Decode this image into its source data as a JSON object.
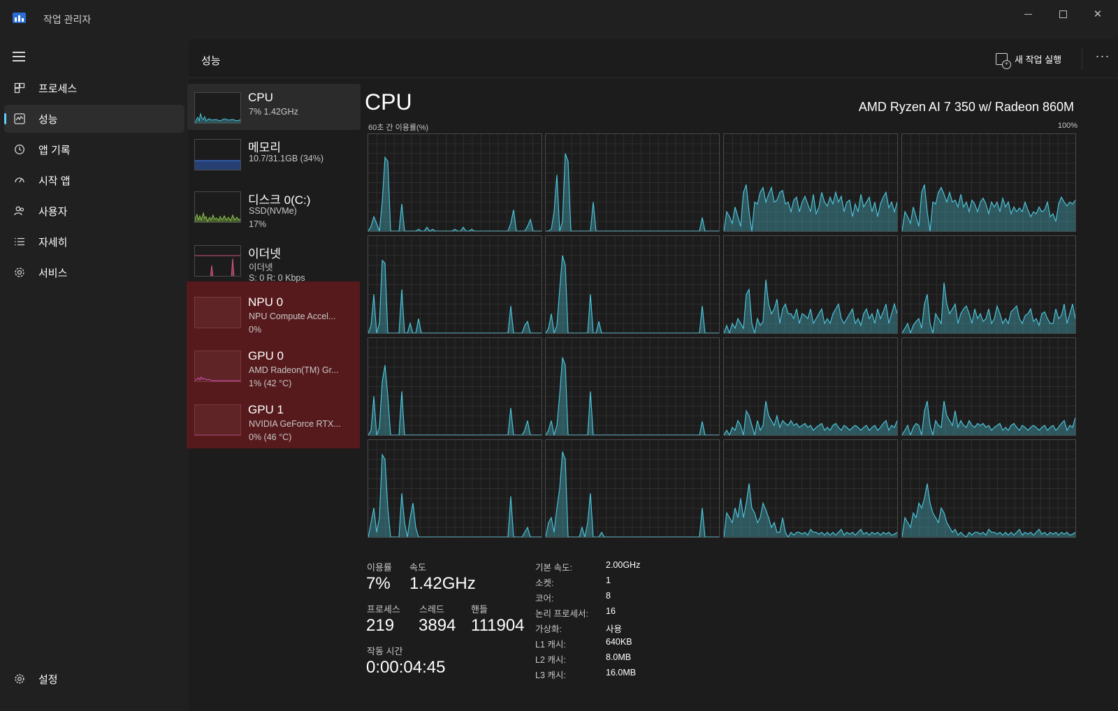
{
  "window": {
    "title": "작업 관리자",
    "controls": {
      "minimize": "—",
      "maximize": "□",
      "close": "✕"
    }
  },
  "nav": {
    "items": [
      {
        "label": "프로세스",
        "icon": "processes-icon"
      },
      {
        "label": "성능",
        "icon": "performance-icon",
        "active": true
      },
      {
        "label": "앱 기록",
        "icon": "history-icon"
      },
      {
        "label": "시작 앱",
        "icon": "startup-icon"
      },
      {
        "label": "사용자",
        "icon": "users-icon"
      },
      {
        "label": "자세히",
        "icon": "details-icon"
      },
      {
        "label": "서비스",
        "icon": "services-icon"
      }
    ],
    "settings": "설정"
  },
  "header": {
    "title": "성능",
    "run_task": "새 작업 실행",
    "more": "···"
  },
  "devices": [
    {
      "name": "CPU",
      "sub1": "7% 1.42GHz",
      "sub2": "",
      "color": "#4cc2d8"
    },
    {
      "name": "메모리",
      "sub1": "10.7/31.1GB (34%)",
      "sub2": "",
      "color": "#3a6fd8"
    },
    {
      "name": "디스크 0(C:)",
      "sub1": "SSD(NVMe)",
      "sub2": "17%",
      "color": "#8bc34a"
    },
    {
      "name": "이더넷",
      "sub1": "이더넷",
      "sub2": "S: 0 R: 0 Kbps",
      "color": "#d0587a"
    },
    {
      "name": "NPU 0",
      "sub1": "NPU Compute Accel...",
      "sub2": "0%",
      "color": "#4cc2d8"
    },
    {
      "name": "GPU 0",
      "sub1": "AMD Radeon(TM) Gr...",
      "sub2": "1% (42 °C)",
      "color": "#c04aa0"
    },
    {
      "name": "GPU 1",
      "sub1": "NVIDIA GeForce RTX...",
      "sub2": "0% (46 °C)",
      "color": "#c04aa0"
    }
  ],
  "cpu": {
    "title": "CPU",
    "model": "AMD Ryzen AI 7 350 w/ Radeon 860M",
    "graph_label": "60초 간 이용률(%)",
    "graph_max": "100%",
    "accent": "#4cc2d8"
  },
  "stats": {
    "utilization_label": "이용률",
    "utilization": "7%",
    "speed_label": "속도",
    "speed": "1.42GHz",
    "processes_label": "프로세스",
    "processes": "219",
    "threads_label": "스레드",
    "threads": "3894",
    "handles_label": "핸들",
    "handles": "111904",
    "uptime_label": "작동 시간",
    "uptime": "0:00:04:45"
  },
  "specs": [
    {
      "label": "기본 속도:",
      "value": "2.00GHz"
    },
    {
      "label": "소켓:",
      "value": "1"
    },
    {
      "label": "코어:",
      "value": "8"
    },
    {
      "label": "논리 프로세서:",
      "value": "16"
    },
    {
      "label": "가상화:",
      "value": "사용"
    },
    {
      "label": "L1 캐시:",
      "value": "640KB"
    },
    {
      "label": "L2 캐시:",
      "value": "8.0MB"
    },
    {
      "label": "L3 캐시:",
      "value": "16.0MB"
    }
  ],
  "chart_data": {
    "type": "area",
    "title": "CPU",
    "ylabel": "60초 간 이용률(%)",
    "ylim": [
      0,
      100
    ],
    "grid": true,
    "series": [
      {
        "values": [
          0,
          5,
          15,
          8,
          0,
          30,
          76,
          72,
          0,
          0,
          0,
          0,
          28,
          0,
          0,
          0,
          0,
          0,
          2,
          0,
          0,
          4,
          0,
          2,
          0,
          0,
          0,
          0,
          0,
          0,
          0,
          2,
          0,
          0,
          4,
          0,
          0,
          2,
          0,
          0,
          0,
          0,
          0,
          0,
          0,
          0,
          0,
          0,
          0,
          0,
          0,
          8,
          22,
          0,
          0,
          0,
          0,
          5,
          12,
          0,
          0,
          0,
          0
        ]
      },
      {
        "values": [
          0,
          0,
          2,
          20,
          58,
          0,
          10,
          80,
          72,
          0,
          0,
          0,
          0,
          0,
          0,
          0,
          0,
          30,
          0,
          0,
          0,
          0,
          0,
          0,
          0,
          0,
          0,
          0,
          0,
          0,
          0,
          0,
          0,
          0,
          0,
          0,
          0,
          0,
          0,
          0,
          0,
          0,
          0,
          0,
          0,
          0,
          0,
          0,
          0,
          0,
          0,
          0,
          0,
          0,
          0,
          0,
          14,
          0,
          0,
          0,
          0,
          0,
          0
        ]
      },
      {
        "values": [
          0,
          20,
          15,
          8,
          25,
          15,
          5,
          40,
          48,
          20,
          0,
          30,
          28,
          40,
          45,
          30,
          38,
          45,
          30,
          32,
          40,
          42,
          28,
          30,
          20,
          32,
          35,
          20,
          30,
          36,
          28,
          20,
          38,
          18,
          25,
          40,
          30,
          26,
          35,
          28,
          40,
          30,
          36,
          20,
          30,
          32,
          15,
          28,
          20,
          38,
          25,
          30,
          35,
          20,
          30,
          15,
          28,
          35,
          40,
          24,
          30,
          20,
          30
        ]
      },
      {
        "values": [
          0,
          20,
          15,
          8,
          25,
          15,
          5,
          40,
          48,
          20,
          0,
          30,
          28,
          40,
          45,
          38,
          30,
          40,
          30,
          32,
          25,
          38,
          25,
          30,
          20,
          32,
          28,
          20,
          30,
          34,
          28,
          18,
          30,
          25,
          30,
          20,
          34,
          25,
          30,
          18,
          25,
          20,
          24,
          20,
          30,
          22,
          15,
          20,
          18,
          25,
          20,
          22,
          30,
          15,
          18,
          10,
          28,
          35,
          30,
          26,
          30,
          28,
          32
        ]
      },
      {
        "values": [
          0,
          8,
          40,
          0,
          10,
          75,
          72,
          0,
          0,
          0,
          0,
          0,
          45,
          0,
          0,
          10,
          0,
          0,
          15,
          0,
          0,
          0,
          0,
          0,
          0,
          0,
          0,
          0,
          0,
          0,
          0,
          0,
          0,
          0,
          0,
          0,
          0,
          0,
          0,
          0,
          0,
          0,
          0,
          0,
          0,
          0,
          0,
          0,
          0,
          0,
          0,
          28,
          0,
          0,
          0,
          0,
          8,
          12,
          0,
          0,
          0,
          0,
          0
        ]
      },
      {
        "values": [
          0,
          5,
          20,
          0,
          8,
          45,
          80,
          70,
          0,
          0,
          0,
          0,
          0,
          0,
          0,
          0,
          40,
          0,
          0,
          12,
          0,
          0,
          0,
          0,
          0,
          0,
          0,
          0,
          0,
          0,
          0,
          0,
          0,
          0,
          0,
          0,
          0,
          0,
          0,
          0,
          0,
          0,
          0,
          0,
          0,
          0,
          0,
          0,
          0,
          0,
          0,
          0,
          0,
          0,
          0,
          0,
          28,
          0,
          0,
          0,
          0,
          0,
          0
        ]
      },
      {
        "values": [
          0,
          8,
          0,
          10,
          5,
          15,
          10,
          5,
          40,
          45,
          10,
          0,
          15,
          8,
          12,
          55,
          30,
          20,
          25,
          35,
          10,
          25,
          30,
          20,
          20,
          15,
          25,
          10,
          20,
          18,
          15,
          25,
          10,
          15,
          20,
          25,
          10,
          15,
          10,
          20,
          25,
          30,
          15,
          10,
          15,
          20,
          25,
          10,
          15,
          8,
          20,
          25,
          15,
          20,
          10,
          25,
          15,
          22,
          30,
          10,
          20,
          30,
          20
        ]
      },
      {
        "values": [
          0,
          5,
          10,
          0,
          8,
          12,
          15,
          5,
          30,
          40,
          10,
          0,
          20,
          15,
          10,
          52,
          30,
          20,
          25,
          30,
          10,
          20,
          25,
          28,
          20,
          10,
          25,
          15,
          20,
          12,
          15,
          25,
          10,
          15,
          28,
          20,
          10,
          15,
          10,
          22,
          25,
          28,
          15,
          10,
          18,
          20,
          25,
          12,
          15,
          8,
          20,
          22,
          15,
          10,
          10,
          25,
          15,
          18,
          30,
          10,
          20,
          30,
          15
        ]
      },
      {
        "values": [
          0,
          5,
          40,
          0,
          8,
          55,
          72,
          40,
          0,
          0,
          0,
          0,
          45,
          0,
          0,
          0,
          0,
          0,
          0,
          0,
          0,
          0,
          0,
          0,
          0,
          0,
          0,
          0,
          0,
          0,
          0,
          0,
          0,
          0,
          0,
          0,
          0,
          0,
          0,
          0,
          0,
          0,
          0,
          0,
          0,
          0,
          0,
          0,
          0,
          0,
          0,
          28,
          0,
          0,
          0,
          0,
          5,
          15,
          0,
          0,
          0,
          0,
          0
        ]
      },
      {
        "values": [
          0,
          5,
          15,
          0,
          10,
          42,
          80,
          72,
          0,
          0,
          0,
          0,
          0,
          0,
          0,
          0,
          45,
          0,
          0,
          0,
          0,
          0,
          0,
          0,
          0,
          0,
          0,
          0,
          0,
          0,
          0,
          0,
          0,
          0,
          0,
          0,
          0,
          0,
          0,
          0,
          0,
          0,
          0,
          0,
          0,
          0,
          0,
          0,
          0,
          0,
          0,
          0,
          0,
          0,
          0,
          0,
          14,
          0,
          0,
          0,
          0,
          0,
          0
        ]
      },
      {
        "values": [
          0,
          5,
          0,
          8,
          5,
          15,
          10,
          0,
          25,
          20,
          10,
          0,
          15,
          5,
          10,
          35,
          20,
          15,
          10,
          20,
          8,
          15,
          12,
          10,
          15,
          10,
          12,
          8,
          10,
          12,
          8,
          10,
          5,
          8,
          10,
          12,
          5,
          8,
          5,
          10,
          12,
          8,
          5,
          10,
          8,
          5,
          8,
          10,
          8,
          5,
          8,
          10,
          5,
          8,
          10,
          5,
          8,
          12,
          15,
          5,
          10,
          8,
          15
        ]
      },
      {
        "values": [
          0,
          5,
          10,
          0,
          8,
          12,
          10,
          0,
          25,
          35,
          10,
          0,
          15,
          10,
          8,
          35,
          20,
          15,
          10,
          25,
          8,
          15,
          10,
          8,
          15,
          10,
          8,
          12,
          10,
          12,
          8,
          10,
          5,
          8,
          10,
          12,
          5,
          8,
          5,
          10,
          12,
          8,
          5,
          10,
          8,
          5,
          8,
          10,
          8,
          5,
          8,
          10,
          5,
          8,
          10,
          5,
          8,
          12,
          15,
          5,
          10,
          8,
          18
        ]
      },
      {
        "values": [
          0,
          15,
          30,
          5,
          20,
          85,
          80,
          30,
          0,
          0,
          0,
          0,
          45,
          15,
          0,
          20,
          35,
          10,
          0,
          0,
          0,
          0,
          0,
          0,
          0,
          0,
          0,
          0,
          0,
          0,
          0,
          0,
          0,
          0,
          0,
          0,
          0,
          0,
          0,
          0,
          0,
          0,
          0,
          0,
          0,
          0,
          0,
          0,
          0,
          0,
          0,
          42,
          0,
          0,
          0,
          0,
          5,
          10,
          0,
          0,
          0,
          0,
          0
        ]
      },
      {
        "values": [
          0,
          15,
          20,
          5,
          30,
          50,
          88,
          80,
          0,
          0,
          0,
          0,
          0,
          10,
          0,
          15,
          45,
          0,
          0,
          0,
          5,
          0,
          0,
          0,
          0,
          0,
          0,
          0,
          0,
          0,
          0,
          0,
          0,
          0,
          0,
          0,
          0,
          0,
          0,
          0,
          0,
          0,
          0,
          0,
          0,
          0,
          0,
          0,
          0,
          0,
          0,
          0,
          0,
          0,
          0,
          0,
          30,
          0,
          0,
          0,
          0,
          0,
          0
        ]
      },
      {
        "values": [
          0,
          25,
          20,
          15,
          30,
          20,
          40,
          20,
          35,
          55,
          30,
          25,
          15,
          20,
          35,
          28,
          20,
          10,
          15,
          5,
          5,
          20,
          5,
          0,
          5,
          2,
          5,
          5,
          3,
          5,
          2,
          8,
          5,
          5,
          3,
          5,
          2,
          5,
          2,
          5,
          2,
          5,
          8,
          2,
          5,
          3,
          5,
          2,
          5,
          8,
          3,
          5,
          2,
          5,
          3,
          5,
          2,
          5,
          3,
          5,
          2,
          3,
          5
        ]
      },
      {
        "values": [
          0,
          20,
          15,
          10,
          25,
          20,
          35,
          30,
          40,
          55,
          35,
          25,
          20,
          15,
          30,
          25,
          15,
          10,
          5,
          8,
          2,
          5,
          2,
          0,
          5,
          2,
          5,
          5,
          3,
          5,
          2,
          8,
          5,
          5,
          3,
          5,
          2,
          5,
          2,
          5,
          2,
          5,
          8,
          2,
          5,
          3,
          5,
          2,
          5,
          8,
          3,
          5,
          2,
          5,
          3,
          5,
          2,
          5,
          3,
          5,
          2,
          3,
          5
        ]
      }
    ]
  }
}
